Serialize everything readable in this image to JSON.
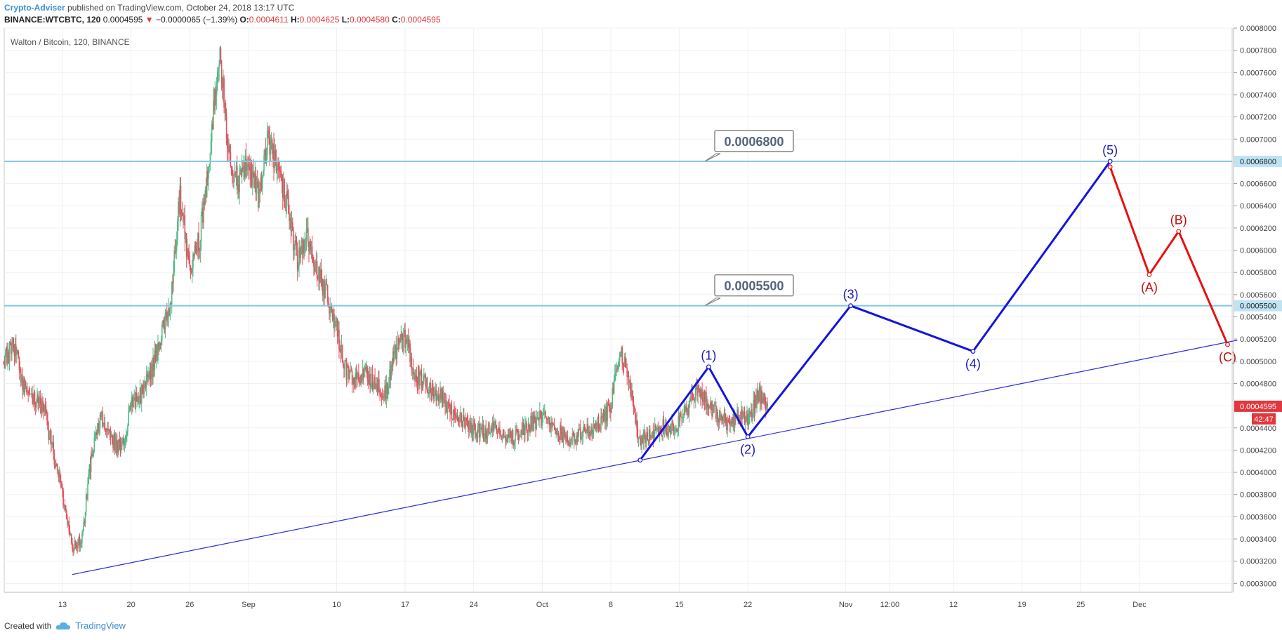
{
  "header": {
    "author": "Crypto-Adviser",
    "published": "published on TradingView.com, October 24, 2018 13:17 UTC",
    "symbol": "BINANCE:WTCBTC, 120",
    "last": "0.0004595",
    "change_arrow": "▼",
    "change": "−0.0000065 (−1.39%)",
    "o_label": "O:",
    "o_value": "0.0004611",
    "h_label": "H:",
    "h_value": "0.0004625",
    "l_label": "L:",
    "l_value": "0.0004580",
    "c_label": "C:",
    "c_value": "0.0004595"
  },
  "footer": {
    "created_with": "Created with",
    "brand": "TradingView",
    "brand_icon": "tradingview-cloud-icon"
  },
  "colors": {
    "up": "#53b987",
    "down": "#eb4d5c",
    "hline": "#7fc6e6",
    "trend": "#2b2be0",
    "wave_up": "#1414e0",
    "wave_down": "#e81010",
    "label_blue": "#1a1ab0",
    "label_red": "#c01010",
    "price_badge": "#e0383e"
  },
  "chart_data": {
    "type": "candlestick",
    "title": "Walton / Bitcoin, 120, BINANCE",
    "timeframe": "120",
    "x_ticks": [
      "13",
      "20",
      "26",
      "Sep",
      "10",
      "17",
      "24",
      "Oct",
      "8",
      "15",
      "22",
      "Nov",
      "12:00",
      "12",
      "19",
      "25",
      "Dec"
    ],
    "y_ticks": [
      "0.0008000",
      "0.0007800",
      "0.0007600",
      "0.0007400",
      "0.0007200",
      "0.0007000",
      "0.0006800",
      "0.0006600",
      "0.0006400",
      "0.0006200",
      "0.0006000",
      "0.0005800",
      "0.0005600",
      "0.0005400",
      "0.0005200",
      "0.0005000",
      "0.0004800",
      "0.0004600",
      "0.0004400",
      "0.0004200",
      "0.0004000",
      "0.0003800",
      "0.0003600",
      "0.0003400",
      "0.0003200",
      "0.0003000"
    ],
    "ylim": [
      0.000292,
      0.0008
    ],
    "price_path": [
      [
        "Aug 7",
        0.0005
      ],
      [
        "Aug 8",
        0.000515
      ],
      [
        "Aug 9",
        0.00048
      ],
      [
        "Aug 10",
        0.000465
      ],
      [
        "Aug 11",
        0.00046
      ],
      [
        "Aug 12",
        0.00042
      ],
      [
        "Aug 13",
        0.00038
      ],
      [
        "Aug 14",
        0.00033
      ],
      [
        "Aug 15",
        0.00034
      ],
      [
        "Aug 16",
        0.00042
      ],
      [
        "Aug 17",
        0.00045
      ],
      [
        "Aug 18",
        0.00043
      ],
      [
        "Aug 19",
        0.00042
      ],
      [
        "Aug 20",
        0.00046
      ],
      [
        "Aug 21",
        0.00047
      ],
      [
        "Aug 22",
        0.00049
      ],
      [
        "Aug 23",
        0.00052
      ],
      [
        "Aug 24",
        0.00055
      ],
      [
        "Aug 25",
        0.00065
      ],
      [
        "Aug 26",
        0.00058
      ],
      [
        "Aug 27",
        0.00061
      ],
      [
        "Aug 28",
        0.00068
      ],
      [
        "Aug 29",
        0.00078
      ],
      [
        "Aug 30",
        0.00069
      ],
      [
        "Aug 31",
        0.00066
      ],
      [
        "Sep 1",
        0.00068
      ],
      [
        "Sep 2",
        0.00065
      ],
      [
        "Sep 3",
        0.0007
      ],
      [
        "Sep 4",
        0.00067
      ],
      [
        "Sep 5",
        0.00064
      ],
      [
        "Sep 6",
        0.00059
      ],
      [
        "Sep 7",
        0.00061
      ],
      [
        "Sep 8",
        0.00058
      ],
      [
        "Sep 9",
        0.00056
      ],
      [
        "Sep 10",
        0.00053
      ],
      [
        "Sep 11",
        0.00049
      ],
      [
        "Sep 12",
        0.00048
      ],
      [
        "Sep 13",
        0.00049
      ],
      [
        "Sep 14",
        0.00048
      ],
      [
        "Sep 15",
        0.00047
      ],
      [
        "Sep 16",
        0.00051
      ],
      [
        "Sep 17",
        0.00052
      ],
      [
        "Sep 18",
        0.00049
      ],
      [
        "Sep 19",
        0.00048
      ],
      [
        "Sep 20",
        0.00047
      ],
      [
        "Sep 21",
        0.000465
      ],
      [
        "Sep 22",
        0.00045
      ],
      [
        "Sep 23",
        0.000445
      ],
      [
        "Sep 24",
        0.00044
      ],
      [
        "Sep 25",
        0.000435
      ],
      [
        "Sep 26",
        0.00044
      ],
      [
        "Sep 27",
        0.000435
      ],
      [
        "Sep 28",
        0.00043
      ],
      [
        "Sep 29",
        0.00044
      ],
      [
        "Sep 30",
        0.000445
      ],
      [
        "Oct 1",
        0.00045
      ],
      [
        "Oct 2",
        0.00044
      ],
      [
        "Oct 3",
        0.000435
      ],
      [
        "Oct 4",
        0.00043
      ],
      [
        "Oct 5",
        0.000435
      ],
      [
        "Oct 6",
        0.00044
      ],
      [
        "Oct 7",
        0.000445
      ],
      [
        "Oct 8",
        0.00046
      ],
      [
        "Oct 9",
        0.00051
      ],
      [
        "Oct 10",
        0.000475
      ],
      [
        "Oct 11",
        0.000425
      ],
      [
        "Oct 12",
        0.000435
      ],
      [
        "Oct 13",
        0.00044
      ],
      [
        "Oct 14",
        0.00044
      ],
      [
        "Oct 15",
        0.000445
      ],
      [
        "Oct 16",
        0.00046
      ],
      [
        "Oct 17",
        0.000475
      ],
      [
        "Oct 18",
        0.00046
      ],
      [
        "Oct 19",
        0.00045
      ],
      [
        "Oct 20",
        0.000445
      ],
      [
        "Oct 21",
        0.00045
      ],
      [
        "Oct 22",
        0.000445
      ],
      [
        "Oct 23",
        0.00047
      ],
      [
        "Oct 24",
        0.0004595
      ]
    ],
    "horizontal_lines": [
      {
        "value": 0.00068,
        "label": "0.0006800",
        "axis_label": "0.0006800"
      },
      {
        "value": 0.00055,
        "label": "0.0005500",
        "axis_label": "0.0005500"
      }
    ],
    "trendline": {
      "from": [
        "Aug 14",
        0.000308
      ],
      "to": [
        "Dec 11",
        0.000519
      ]
    },
    "wave_up": [
      {
        "date": "Oct 11",
        "value": 0.000411,
        "label": ""
      },
      {
        "date": "Oct 18",
        "value": 0.000495,
        "label": "(1)"
      },
      {
        "date": "Oct 22",
        "value": 0.000432,
        "label": "(2)"
      },
      {
        "date": "Nov 1 12:00",
        "value": 0.00055,
        "label": "(3)"
      },
      {
        "date": "Nov 14",
        "value": 0.000509,
        "label": "(4)"
      },
      {
        "date": "Nov 28",
        "value": 0.00068,
        "label": "(5)"
      }
    ],
    "wave_down": [
      {
        "date": "Nov 28",
        "value": 0.000675,
        "label": ""
      },
      {
        "date": "Dec 2",
        "value": 0.000578,
        "label": "(A)"
      },
      {
        "date": "Dec 5",
        "value": 0.000617,
        "label": "(B)"
      },
      {
        "date": "Dec 10",
        "value": 0.000515,
        "label": "(C)"
      }
    ],
    "current_price": "0.0004595",
    "countdown": "42:47",
    "grid": true
  }
}
